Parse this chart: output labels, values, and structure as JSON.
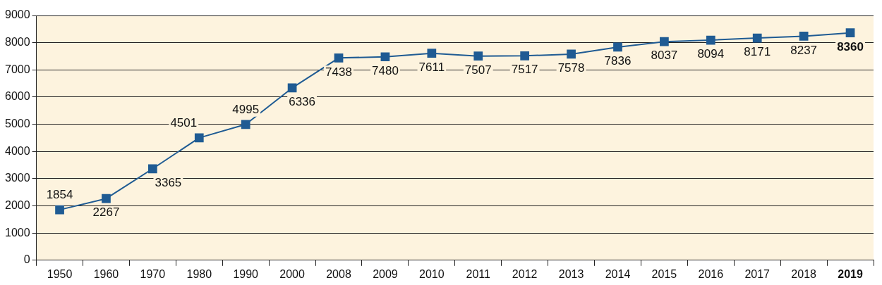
{
  "chart_data": {
    "type": "line",
    "categories": [
      "1950",
      "1960",
      "1970",
      "1980",
      "1990",
      "2000",
      "2008",
      "2009",
      "2010",
      "2011",
      "2012",
      "2013",
      "2014",
      "2015",
      "2016",
      "2017",
      "2018",
      "2019"
    ],
    "series": [
      {
        "color": "#1f5b93",
        "values": [
          1854,
          2267,
          3365,
          4501,
          4995,
          6336,
          7438,
          7480,
          7611,
          7507,
          7517,
          7578,
          7836,
          8037,
          8094,
          8171,
          8237,
          8360
        ]
      }
    ],
    "ylim": [
      0,
      9000
    ],
    "yticks": [
      0,
      1000,
      2000,
      3000,
      4000,
      5000,
      6000,
      7000,
      8000,
      9000
    ],
    "grid": "y",
    "legend": false,
    "marker": "square",
    "line_style": "solid",
    "data_labels": true
  }
}
